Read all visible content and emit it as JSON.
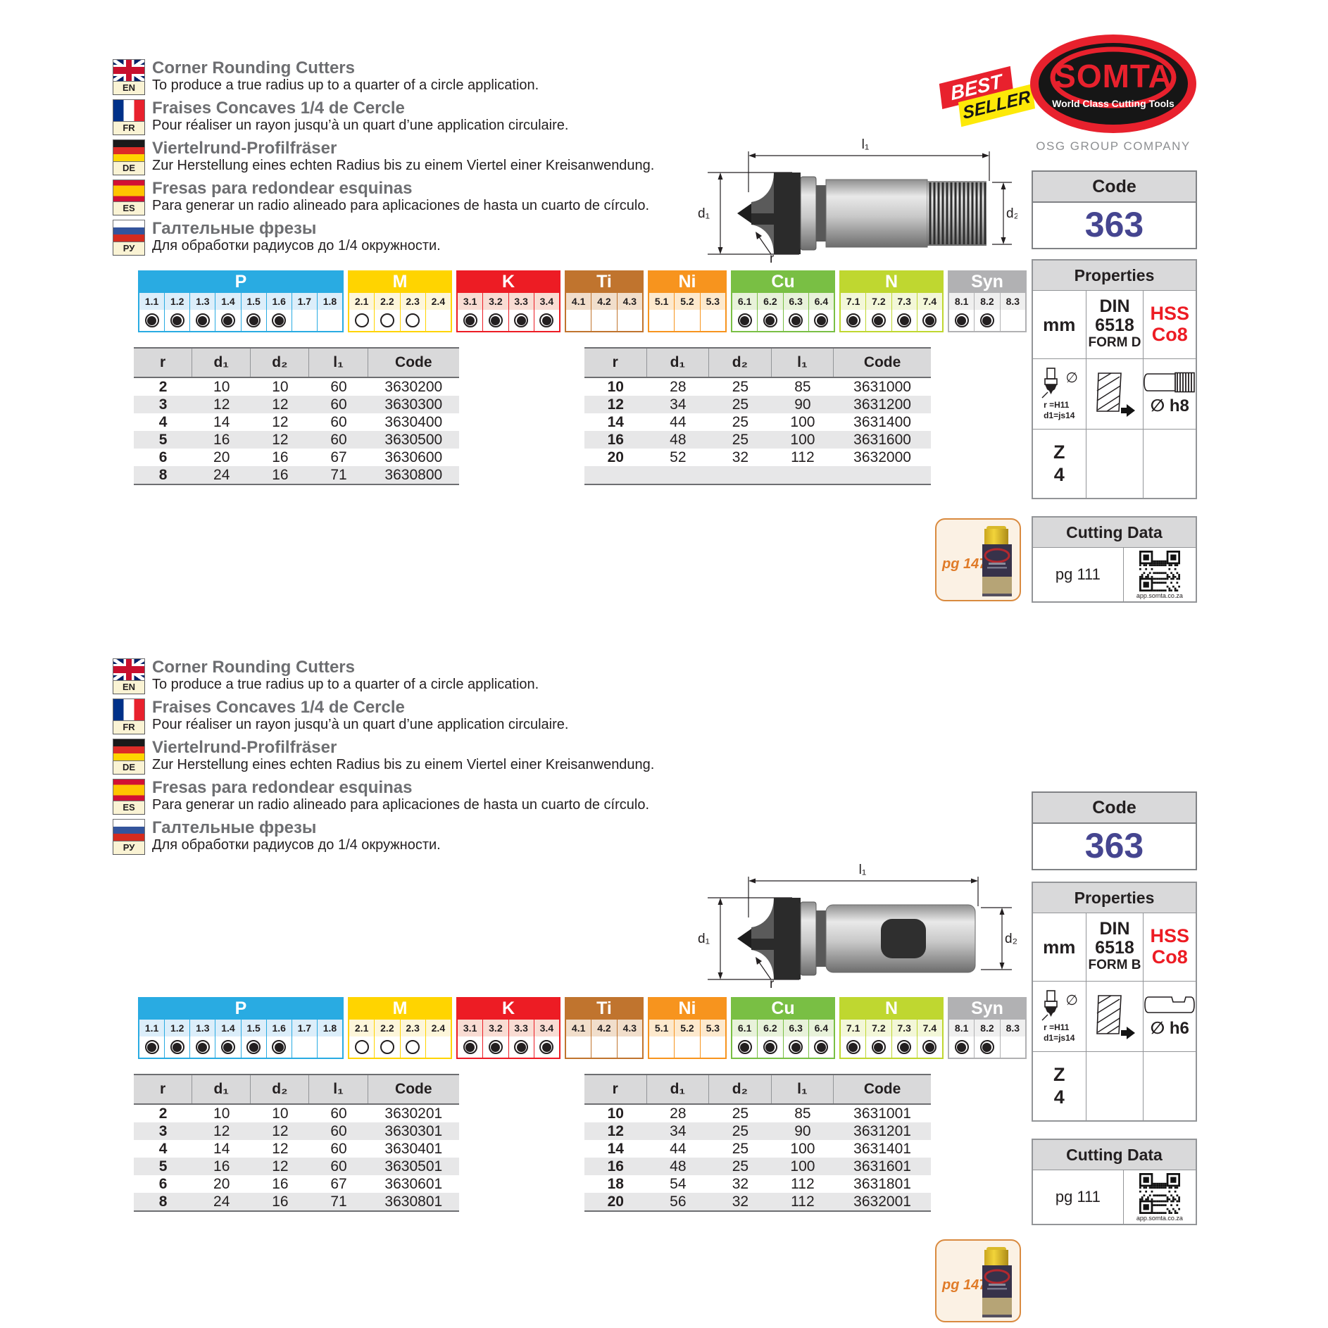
{
  "brand": {
    "logo_text": "SOMTA",
    "logo_tagline": "World Class Cutting Tools",
    "company": "OSG GROUP COMPANY",
    "badge_top": "BEST",
    "badge_bottom": "SELLER"
  },
  "shared": {
    "languages": [
      {
        "code": "EN",
        "flag": "en",
        "title": "Corner Rounding Cutters",
        "desc": "To produce a true radius up to a quarter of a circle application."
      },
      {
        "code": "FR",
        "flag": "fr",
        "title": "Fraises Concaves 1/4 de Cercle",
        "desc": "Pour réaliser un rayon jusqu’à un quart d’une application circulaire."
      },
      {
        "code": "DE",
        "flag": "de",
        "title": "Viertelrund-Profilfräser",
        "desc": "Zur Herstellung eines echten Radius bis zu einem Viertel einer Kreisanwendung."
      },
      {
        "code": "ES",
        "flag": "es",
        "title": "Fresas para redondear esquinas",
        "desc": "Para generar un radio alineado para aplicaciones de hasta un cuarto de círculo."
      },
      {
        "code": "РУ",
        "flag": "ru",
        "title": "Галтельные фрезы",
        "desc": "Для обработки радиусов до 1/4 окружности."
      }
    ],
    "materials": [
      {
        "name": "P",
        "color": "#29abe2",
        "tint": "#dceefa",
        "cells": [
          {
            "label": "1.1",
            "state": "filled"
          },
          {
            "label": "1.2",
            "state": "filled"
          },
          {
            "label": "1.3",
            "state": "filled"
          },
          {
            "label": "1.4",
            "state": "filled"
          },
          {
            "label": "1.5",
            "state": "filled"
          },
          {
            "label": "1.6",
            "state": "filled"
          },
          {
            "label": "1.7",
            "state": "none"
          },
          {
            "label": "1.8",
            "state": "none"
          }
        ]
      },
      {
        "name": "M",
        "color": "#ffd400",
        "tint": "#fdf6da",
        "cells": [
          {
            "label": "2.1",
            "state": "open"
          },
          {
            "label": "2.2",
            "state": "open"
          },
          {
            "label": "2.3",
            "state": "open"
          },
          {
            "label": "2.4",
            "state": "none"
          }
        ]
      },
      {
        "name": "K",
        "color": "#ed1c24",
        "tint": "#f9dcd3",
        "cells": [
          {
            "label": "3.1",
            "state": "filled"
          },
          {
            "label": "3.2",
            "state": "filled"
          },
          {
            "label": "3.3",
            "state": "filled"
          },
          {
            "label": "3.4",
            "state": "filled"
          }
        ]
      },
      {
        "name": "Ti",
        "color": "#c0742e",
        "tint": "#f1decb",
        "cells": [
          {
            "label": "4.1",
            "state": "none"
          },
          {
            "label": "4.2",
            "state": "none"
          },
          {
            "label": "4.3",
            "state": "none"
          }
        ]
      },
      {
        "name": "Ni",
        "color": "#f7941e",
        "tint": "#fde9cd",
        "cells": [
          {
            "label": "5.1",
            "state": "none"
          },
          {
            "label": "5.2",
            "state": "none"
          },
          {
            "label": "5.3",
            "state": "none"
          }
        ]
      },
      {
        "name": "Cu",
        "color": "#79bf44",
        "tint": "#e8f2da",
        "cells": [
          {
            "label": "6.1",
            "state": "filled"
          },
          {
            "label": "6.2",
            "state": "filled"
          },
          {
            "label": "6.3",
            "state": "filled"
          },
          {
            "label": "6.4",
            "state": "filled"
          }
        ]
      },
      {
        "name": "N",
        "color": "#bfd730",
        "tint": "#f3f7d8",
        "cells": [
          {
            "label": "7.1",
            "state": "filled"
          },
          {
            "label": "7.2",
            "state": "filled"
          },
          {
            "label": "7.3",
            "state": "filled"
          },
          {
            "label": "7.4",
            "state": "filled"
          }
        ]
      },
      {
        "name": "Syn",
        "color": "#b1b1b3",
        "tint": "#efefef",
        "cells": [
          {
            "label": "8.1",
            "state": "filled"
          },
          {
            "label": "8.2",
            "state": "filled"
          },
          {
            "label": "8.3",
            "state": "none"
          }
        ]
      }
    ],
    "table_headers": {
      "r": "r",
      "d1": "d₁",
      "d2": "d₂",
      "l1": "l₁",
      "code": "Code"
    },
    "drawing": {
      "l1": "l₁",
      "d1": "d₁",
      "d2": "d₂",
      "r": "r"
    },
    "code_box": {
      "header": "Code",
      "value": "363"
    },
    "properties": {
      "header": "Properties",
      "unit": "mm",
      "din1": "DIN",
      "din2": "6518",
      "hss1": "HSS",
      "hss2": "Co8",
      "dia": "∅",
      "note1": "r =H11",
      "note2": "d1=js14",
      "z1": "Z",
      "z2": "4"
    },
    "cutting": {
      "header": "Cutting Data",
      "page": "pg 111",
      "qr_caption": "app.somta.co.za"
    },
    "oilcan_page": "pg 147"
  },
  "sections": [
    {
      "form": "FORM D",
      "shank_tol": "∅ h8",
      "rows_left": [
        {
          "r": "2",
          "d1": "10",
          "d2": "10",
          "l1": "60",
          "code": "3630200"
        },
        {
          "r": "3",
          "d1": "12",
          "d2": "12",
          "l1": "60",
          "code": "3630300"
        },
        {
          "r": "4",
          "d1": "14",
          "d2": "12",
          "l1": "60",
          "code": "3630400"
        },
        {
          "r": "5",
          "d1": "16",
          "d2": "12",
          "l1": "60",
          "code": "3630500"
        },
        {
          "r": "6",
          "d1": "20",
          "d2": "16",
          "l1": "67",
          "code": "3630600"
        },
        {
          "r": "8",
          "d1": "24",
          "d2": "16",
          "l1": "71",
          "code": "3630800"
        }
      ],
      "rows_right": [
        {
          "r": "10",
          "d1": "28",
          "d2": "25",
          "l1": "85",
          "code": "3631000"
        },
        {
          "r": "12",
          "d1": "34",
          "d2": "25",
          "l1": "90",
          "code": "3631200"
        },
        {
          "r": "14",
          "d1": "44",
          "d2": "25",
          "l1": "100",
          "code": "3631400"
        },
        {
          "r": "16",
          "d1": "48",
          "d2": "25",
          "l1": "100",
          "code": "3631600"
        },
        {
          "r": "20",
          "d1": "52",
          "d2": "32",
          "l1": "112",
          "code": "3632000"
        },
        {
          "r": "",
          "d1": "",
          "d2": "",
          "l1": "",
          "code": ""
        }
      ]
    },
    {
      "form": "FORM B",
      "shank_tol": "∅ h6",
      "rows_left": [
        {
          "r": "2",
          "d1": "10",
          "d2": "10",
          "l1": "60",
          "code": "3630201"
        },
        {
          "r": "3",
          "d1": "12",
          "d2": "12",
          "l1": "60",
          "code": "3630301"
        },
        {
          "r": "4",
          "d1": "14",
          "d2": "12",
          "l1": "60",
          "code": "3630401"
        },
        {
          "r": "5",
          "d1": "16",
          "d2": "12",
          "l1": "60",
          "code": "3630501"
        },
        {
          "r": "6",
          "d1": "20",
          "d2": "16",
          "l1": "67",
          "code": "3630601"
        },
        {
          "r": "8",
          "d1": "24",
          "d2": "16",
          "l1": "71",
          "code": "3630801"
        }
      ],
      "rows_right": [
        {
          "r": "10",
          "d1": "28",
          "d2": "25",
          "l1": "85",
          "code": "3631001"
        },
        {
          "r": "12",
          "d1": "34",
          "d2": "25",
          "l1": "90",
          "code": "3631201"
        },
        {
          "r": "14",
          "d1": "44",
          "d2": "25",
          "l1": "100",
          "code": "3631401"
        },
        {
          "r": "16",
          "d1": "48",
          "d2": "25",
          "l1": "100",
          "code": "3631601"
        },
        {
          "r": "18",
          "d1": "54",
          "d2": "32",
          "l1": "112",
          "code": "3631801"
        },
        {
          "r": "20",
          "d1": "56",
          "d2": "32",
          "l1": "112",
          "code": "3632001"
        }
      ]
    }
  ]
}
